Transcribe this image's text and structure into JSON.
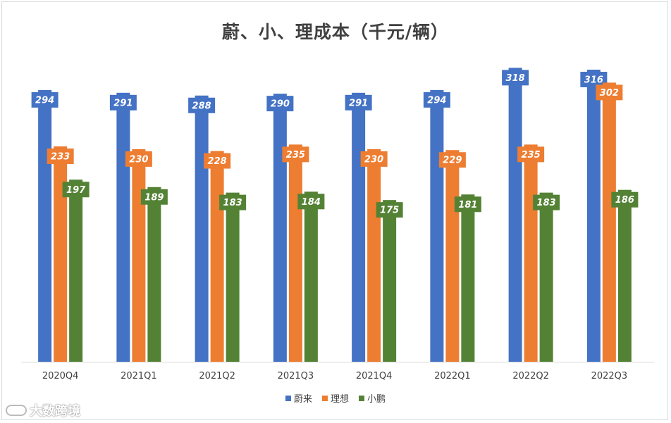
{
  "chart_data": {
    "type": "bar",
    "title": "蔚、小、理成本（千元/辆）",
    "categories": [
      "2020Q4",
      "2021Q1",
      "2021Q2",
      "2021Q3",
      "2021Q4",
      "2022Q1",
      "2022Q2",
      "2022Q3"
    ],
    "series": [
      {
        "name": "蔚来",
        "color": "#4472c4",
        "values": [
          294,
          291,
          288,
          290,
          291,
          294,
          318,
          316
        ]
      },
      {
        "name": "理想",
        "color": "#ed7d31",
        "values": [
          233,
          230,
          228,
          235,
          230,
          229,
          235,
          302
        ]
      },
      {
        "name": "小鹏",
        "color": "#548235",
        "values": [
          197,
          189,
          183,
          184,
          175,
          181,
          183,
          186
        ]
      }
    ],
    "ylim": [
      0,
      330
    ],
    "grid": false,
    "legend": "bottom"
  },
  "watermark": {
    "text": "大数跨境"
  }
}
